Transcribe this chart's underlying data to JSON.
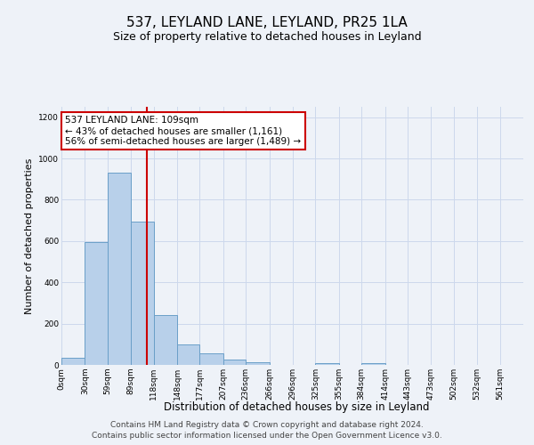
{
  "title": "537, LEYLAND LANE, LEYLAND, PR25 1LA",
  "subtitle": "Size of property relative to detached houses in Leyland",
  "xlabel": "Distribution of detached houses by size in Leyland",
  "ylabel": "Number of detached properties",
  "footer_line1": "Contains HM Land Registry data © Crown copyright and database right 2024.",
  "footer_line2": "Contains public sector information licensed under the Open Government Licence v3.0.",
  "annotation_line1": "537 LEYLAND LANE: 109sqm",
  "annotation_line2": "← 43% of detached houses are smaller (1,161)",
  "annotation_line3": "56% of semi-detached houses are larger (1,489) →",
  "bin_edges": [
    0,
    30,
    59,
    89,
    118,
    148,
    177,
    207,
    236,
    266,
    296,
    325,
    355,
    384,
    414,
    443,
    473,
    502,
    532,
    561,
    591
  ],
  "bin_counts": [
    35,
    595,
    930,
    695,
    240,
    100,
    55,
    25,
    15,
    0,
    0,
    10,
    0,
    10,
    0,
    0,
    0,
    0,
    0,
    0
  ],
  "bar_color": "#b8d0ea",
  "bar_edge_color": "#6a9fc8",
  "bar_linewidth": 0.7,
  "red_line_x": 109,
  "ylim": [
    0,
    1250
  ],
  "yticks": [
    0,
    200,
    400,
    600,
    800,
    1000,
    1200
  ],
  "grid_color": "#ccd8ec",
  "annotation_box_facecolor": "#ffffff",
  "annotation_box_edge_color": "#cc0000",
  "red_line_color": "#cc0000",
  "title_fontsize": 11,
  "subtitle_fontsize": 9,
  "xlabel_fontsize": 8.5,
  "ylabel_fontsize": 8,
  "footer_fontsize": 6.5,
  "annotation_fontsize": 7.5,
  "tick_label_fontsize": 6.5,
  "background_color": "#eef2f8"
}
